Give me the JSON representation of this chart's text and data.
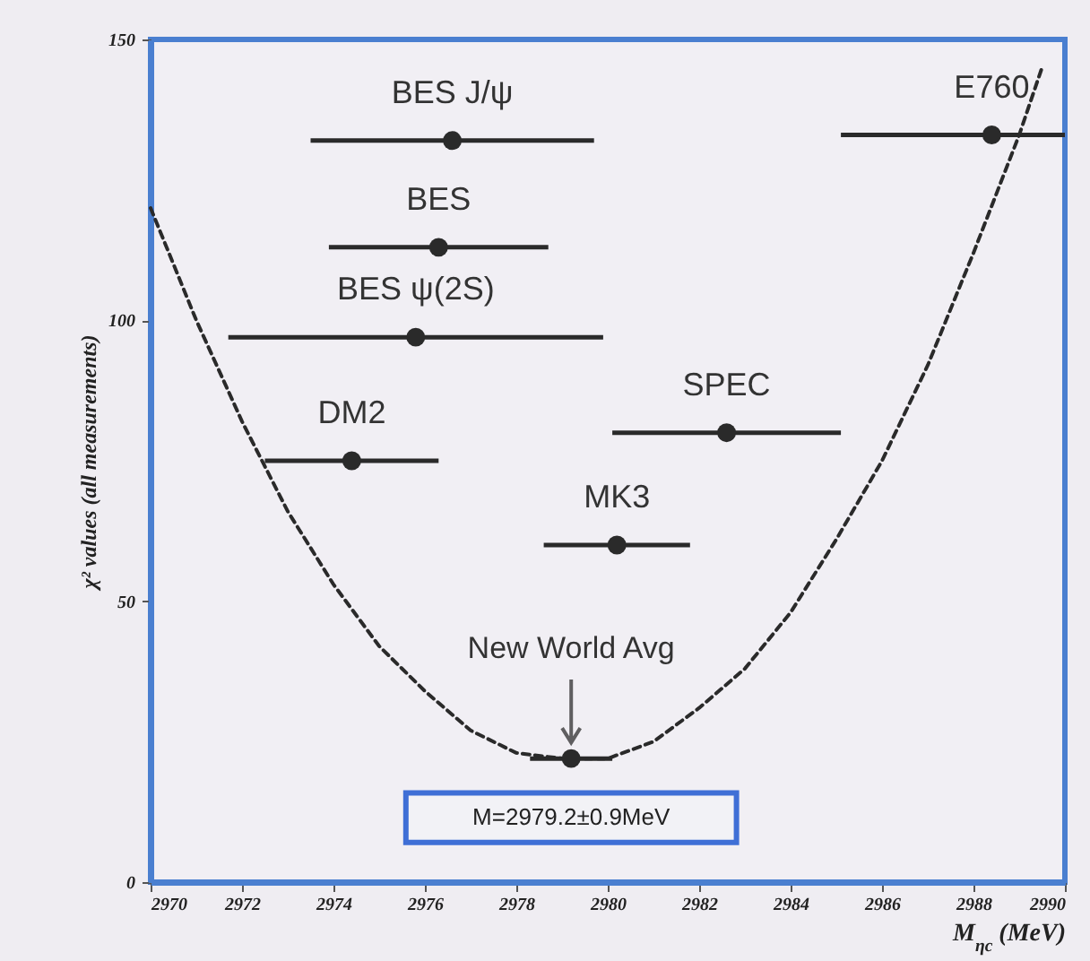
{
  "chart_data": {
    "type": "scatter",
    "xlabel": "M$_{ηc}$ (MeV)",
    "ylabel": "χ² values (all measurements)",
    "xlim": [
      2970,
      2990
    ],
    "xticks": [
      2970,
      2972,
      2974,
      2976,
      2978,
      2980,
      2982,
      2984,
      2986,
      2988,
      2990
    ],
    "ylim": [
      0,
      150
    ],
    "yticks": [
      0,
      50,
      100,
      150
    ],
    "grid": false,
    "marker": "circle",
    "annotations": [
      "New World Avg",
      "M=2979.2±0.9MeV"
    ],
    "series": [
      {
        "name": "BES J/ψ",
        "color": "#2a2a2a",
        "x": [
          2976.6
        ],
        "values": [
          132
        ],
        "xerrors": [
          3.1
        ]
      },
      {
        "name": "BES",
        "color": "#2a2a2a",
        "x": [
          2976.3
        ],
        "values": [
          113
        ],
        "xerrors": [
          2.4
        ]
      },
      {
        "name": "BES ψ(2S)",
        "color": "#2a2a2a",
        "x": [
          2975.8
        ],
        "values": [
          97
        ],
        "xerrors": [
          4.1
        ]
      },
      {
        "name": "DM2",
        "color": "#2a2a2a",
        "x": [
          2974.4
        ],
        "values": [
          75
        ],
        "xerrors": [
          1.9
        ]
      },
      {
        "name": "SPEC",
        "color": "#2a2a2a",
        "x": [
          2982.6
        ],
        "values": [
          80
        ],
        "xerrors": [
          2.5
        ]
      },
      {
        "name": "MK3",
        "color": "#2a2a2a",
        "x": [
          2980.2
        ],
        "values": [
          60
        ],
        "xerrors": [
          1.6
        ]
      },
      {
        "name": "E760",
        "color": "#2a2a2a",
        "x": [
          2988.4
        ],
        "values": [
          133
        ],
        "xerrors": [
          [
            2985.1,
            2990
          ]
        ]
      },
      {
        "color": "#2a2a2a",
        "x": [
          2979.2
        ],
        "values": [
          22
        ],
        "xerrors": [
          0.9
        ]
      },
      {
        "type": "line",
        "line_style": "dashed",
        "marker": "none",
        "color": "#2a2a2a",
        "x": [
          2970,
          2971,
          2972,
          2973,
          2974,
          2975,
          2976,
          2977,
          2978,
          2979,
          2980,
          2981,
          2982,
          2983,
          2984,
          2985,
          2986,
          2987,
          2988,
          2989,
          2989.5
        ],
        "values": [
          120,
          100,
          82,
          66,
          53,
          42,
          34,
          27,
          23,
          22,
          22,
          25,
          31,
          38,
          48,
          61,
          75,
          92,
          112,
          133,
          145
        ]
      }
    ]
  }
}
